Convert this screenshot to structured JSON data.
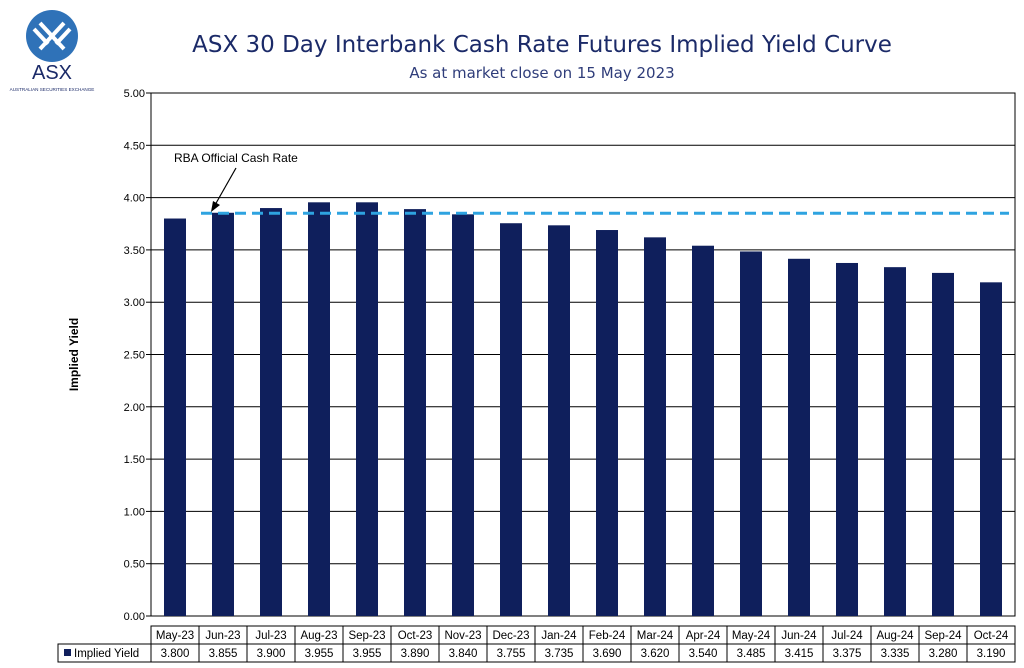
{
  "logo": {
    "name": "ASX",
    "tagline": "AUSTRALIAN SECURITIES EXCHANGE"
  },
  "colors": {
    "bar": "#0f1f5c",
    "rba_line": "#2ea3e0",
    "title": "#1b2a68"
  },
  "chart_data": {
    "type": "bar",
    "title": "ASX 30 Day Interbank Cash Rate Futures Implied Yield Curve",
    "subtitle": "As at market close on 15 May 2023",
    "xlabel": "",
    "ylabel": "Implied Yield",
    "ylim": [
      0,
      5
    ],
    "ytick_step": 0.5,
    "ytick_labels": [
      "0.00",
      "0.50",
      "1.00",
      "1.50",
      "2.00",
      "2.50",
      "3.00",
      "3.50",
      "4.00",
      "4.50",
      "5.00"
    ],
    "grid": true,
    "legend": "bottom-left",
    "categories": [
      "May-23",
      "Jun-23",
      "Jul-23",
      "Aug-23",
      "Sep-23",
      "Oct-23",
      "Nov-23",
      "Dec-23",
      "Jan-24",
      "Feb-24",
      "Mar-24",
      "Apr-24",
      "May-24",
      "Jun-24",
      "Jul-24",
      "Aug-24",
      "Sep-24",
      "Oct-24"
    ],
    "series": [
      {
        "name": "Implied Yield",
        "values": [
          3.8,
          3.855,
          3.9,
          3.955,
          3.955,
          3.89,
          3.84,
          3.755,
          3.735,
          3.69,
          3.62,
          3.54,
          3.485,
          3.415,
          3.375,
          3.335,
          3.28,
          3.19
        ],
        "labels": [
          "3.800",
          "3.855",
          "3.900",
          "3.955",
          "3.955",
          "3.890",
          "3.840",
          "3.755",
          "3.735",
          "3.690",
          "3.620",
          "3.540",
          "3.485",
          "3.415",
          "3.375",
          "3.335",
          "3.280",
          "3.190"
        ]
      }
    ],
    "reference_line": {
      "name": "RBA Official Cash Rate",
      "value": 3.85
    },
    "annotation": "RBA Official Cash Rate"
  }
}
